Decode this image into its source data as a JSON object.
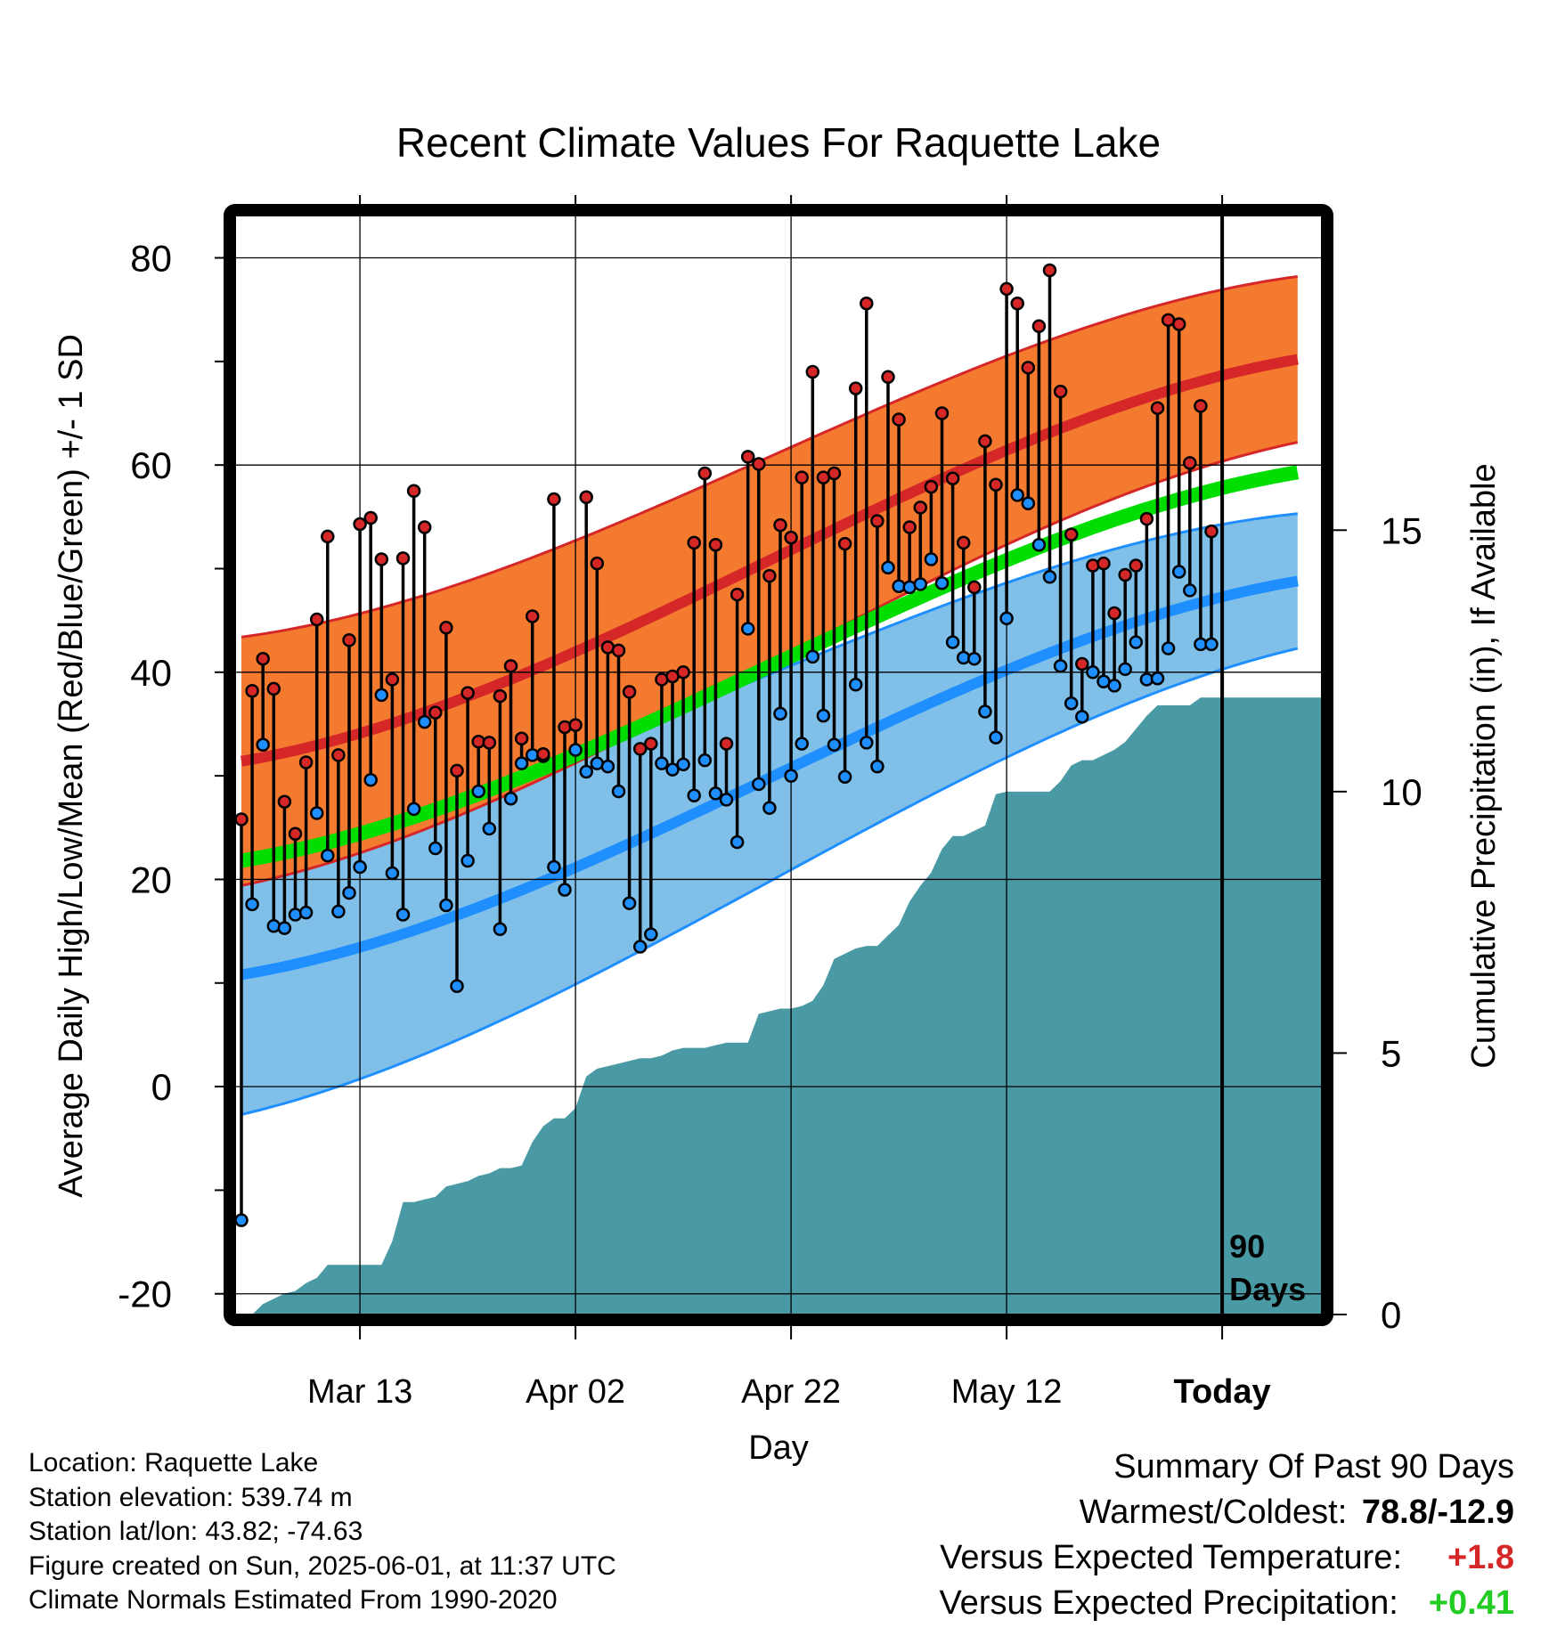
{
  "chart_data": {
    "type": "line",
    "title": "Recent Climate Values For Raquette Lake",
    "xlabel": "Day",
    "ylabel": "Average Daily High/Low/Mean (Red/Blue/Green) +/- 1 SD",
    "y2label": "Cumulative Precipitation (in), If Available",
    "ylim": [
      -22,
      84
    ],
    "y_ticks": [
      -20,
      0,
      20,
      40,
      60,
      80
    ],
    "y2lim": [
      0,
      21
    ],
    "y2_ticks": [
      0,
      5,
      10,
      15
    ],
    "x_ticks": [
      "Mar 13",
      "Apr 02",
      "Apr 22",
      "May 12",
      "Today"
    ],
    "grid": true,
    "today_marker": "90 Days",
    "series_colors": {
      "high": "#d62728",
      "low": "#1f8fff",
      "mean": "#00dd00",
      "precip": "#4a9aa5",
      "high_band": "#f47a30",
      "low_band": "#80c0e8"
    },
    "dates_start": "2025-03-02",
    "dates_end": "2025-05-31",
    "observed_high": [
      25.8,
      38.2,
      41.3,
      38.4,
      27.5,
      24.4,
      31.3,
      45.1,
      53.1,
      32.0,
      43.1,
      54.3,
      54.9,
      50.9,
      39.3,
      51.0,
      57.5,
      54.0,
      36.1,
      44.3,
      30.5,
      38.0,
      33.3,
      33.2,
      37.7,
      40.6,
      33.6,
      45.4,
      32.1,
      56.7,
      34.7,
      34.9,
      56.9,
      50.5,
      42.4,
      42.1,
      38.1,
      32.6,
      33.1,
      39.3,
      39.6,
      40.0,
      52.5,
      59.2,
      52.3,
      33.1,
      47.5,
      60.8,
      60.1,
      49.3,
      54.2,
      53.0,
      58.8,
      69.0,
      58.8,
      59.2,
      52.4,
      67.4,
      75.6,
      54.6,
      68.5,
      64.4,
      54.0,
      55.9,
      57.9,
      65.0,
      58.7,
      52.5,
      48.2,
      62.3,
      58.1,
      77.0,
      75.6,
      69.4,
      73.4,
      78.8,
      67.1,
      53.3,
      40.8,
      50.3,
      50.5,
      45.7,
      49.4,
      50.3,
      54.8,
      65.5,
      74.0,
      73.6,
      60.2,
      65.7,
      53.6
    ],
    "observed_low": [
      -12.9,
      17.6,
      33.0,
      15.5,
      15.3,
      16.6,
      16.8,
      26.4,
      22.3,
      16.9,
      18.7,
      21.2,
      29.6,
      37.8,
      20.6,
      16.6,
      26.8,
      35.2,
      23.0,
      17.5,
      9.7,
      21.8,
      28.5,
      24.9,
      15.2,
      27.8,
      31.2,
      32.0,
      31.9,
      21.2,
      19.0,
      32.5,
      30.4,
      31.2,
      30.9,
      28.5,
      17.7,
      13.5,
      14.7,
      31.2,
      30.6,
      31.1,
      28.1,
      31.5,
      28.3,
      27.7,
      23.6,
      44.2,
      29.2,
      26.9,
      36.0,
      30.0,
      33.1,
      41.5,
      35.8,
      33.0,
      29.9,
      38.8,
      33.2,
      30.9,
      50.1,
      48.3,
      48.2,
      48.5,
      50.9,
      48.6,
      42.9,
      41.4,
      41.3,
      36.2,
      33.7,
      45.2,
      57.1,
      56.3,
      52.3,
      49.2,
      40.6,
      37.0,
      35.7,
      40.0,
      39.1,
      38.7,
      40.3,
      42.9,
      39.3,
      39.4,
      42.3,
      49.7,
      47.9,
      42.7,
      42.7
    ],
    "normal_high": {
      "start": 31.4,
      "end": 70.2,
      "sd_start": 12.0,
      "sd_end": 8.0
    },
    "normal_low": {
      "start": 10.8,
      "end": 48.8,
      "sd_start": 13.5,
      "sd_end": 6.5
    },
    "normal_mean": {
      "start": 21.8,
      "end": 59.3
    },
    "cumulative_precip": [
      0.0,
      0.0,
      0.2,
      0.3,
      0.4,
      0.45,
      0.6,
      0.7,
      0.95,
      0.95,
      0.95,
      0.95,
      0.95,
      0.95,
      1.4,
      2.15,
      2.15,
      2.2,
      2.25,
      2.45,
      2.5,
      2.55,
      2.65,
      2.7,
      2.8,
      2.8,
      2.85,
      3.3,
      3.6,
      3.75,
      3.75,
      3.95,
      4.55,
      4.7,
      4.75,
      4.8,
      4.85,
      4.9,
      4.9,
      4.95,
      5.05,
      5.1,
      5.1,
      5.1,
      5.15,
      5.2,
      5.2,
      5.2,
      5.75,
      5.8,
      5.85,
      5.85,
      5.9,
      6.0,
      6.3,
      6.8,
      6.9,
      7.0,
      7.05,
      7.05,
      7.25,
      7.45,
      7.9,
      8.2,
      8.45,
      8.9,
      9.15,
      9.15,
      9.25,
      9.35,
      9.95,
      10.0,
      10.0,
      10.0,
      10.0,
      10.0,
      10.2,
      10.5,
      10.6,
      10.6,
      10.7,
      10.8,
      10.95,
      11.2,
      11.45,
      11.65,
      11.65,
      11.65,
      11.65,
      11.8,
      11.8
    ]
  },
  "info": {
    "location": "Location: Raquette Lake",
    "elevation": "Station elevation: 539.74 m",
    "latlon": "Station lat/lon: 43.82; -74.63",
    "created": "Figure created on Sun, 2025-06-01, at 11:37 UTC",
    "normals": "Climate Normals Estimated From 1990-2020"
  },
  "summary": {
    "heading": "Summary Of Past 90 Days",
    "warmest_label": "Warmest/Coldest:",
    "warmest_value": "78.8/-12.9",
    "temp_label": "Versus Expected Temperature:",
    "temp_value": "+1.8",
    "temp_color": "#d62728",
    "precip_label": "Versus Expected Precipitation:",
    "precip_value": "+0.41",
    "precip_color": "#22cc22"
  }
}
